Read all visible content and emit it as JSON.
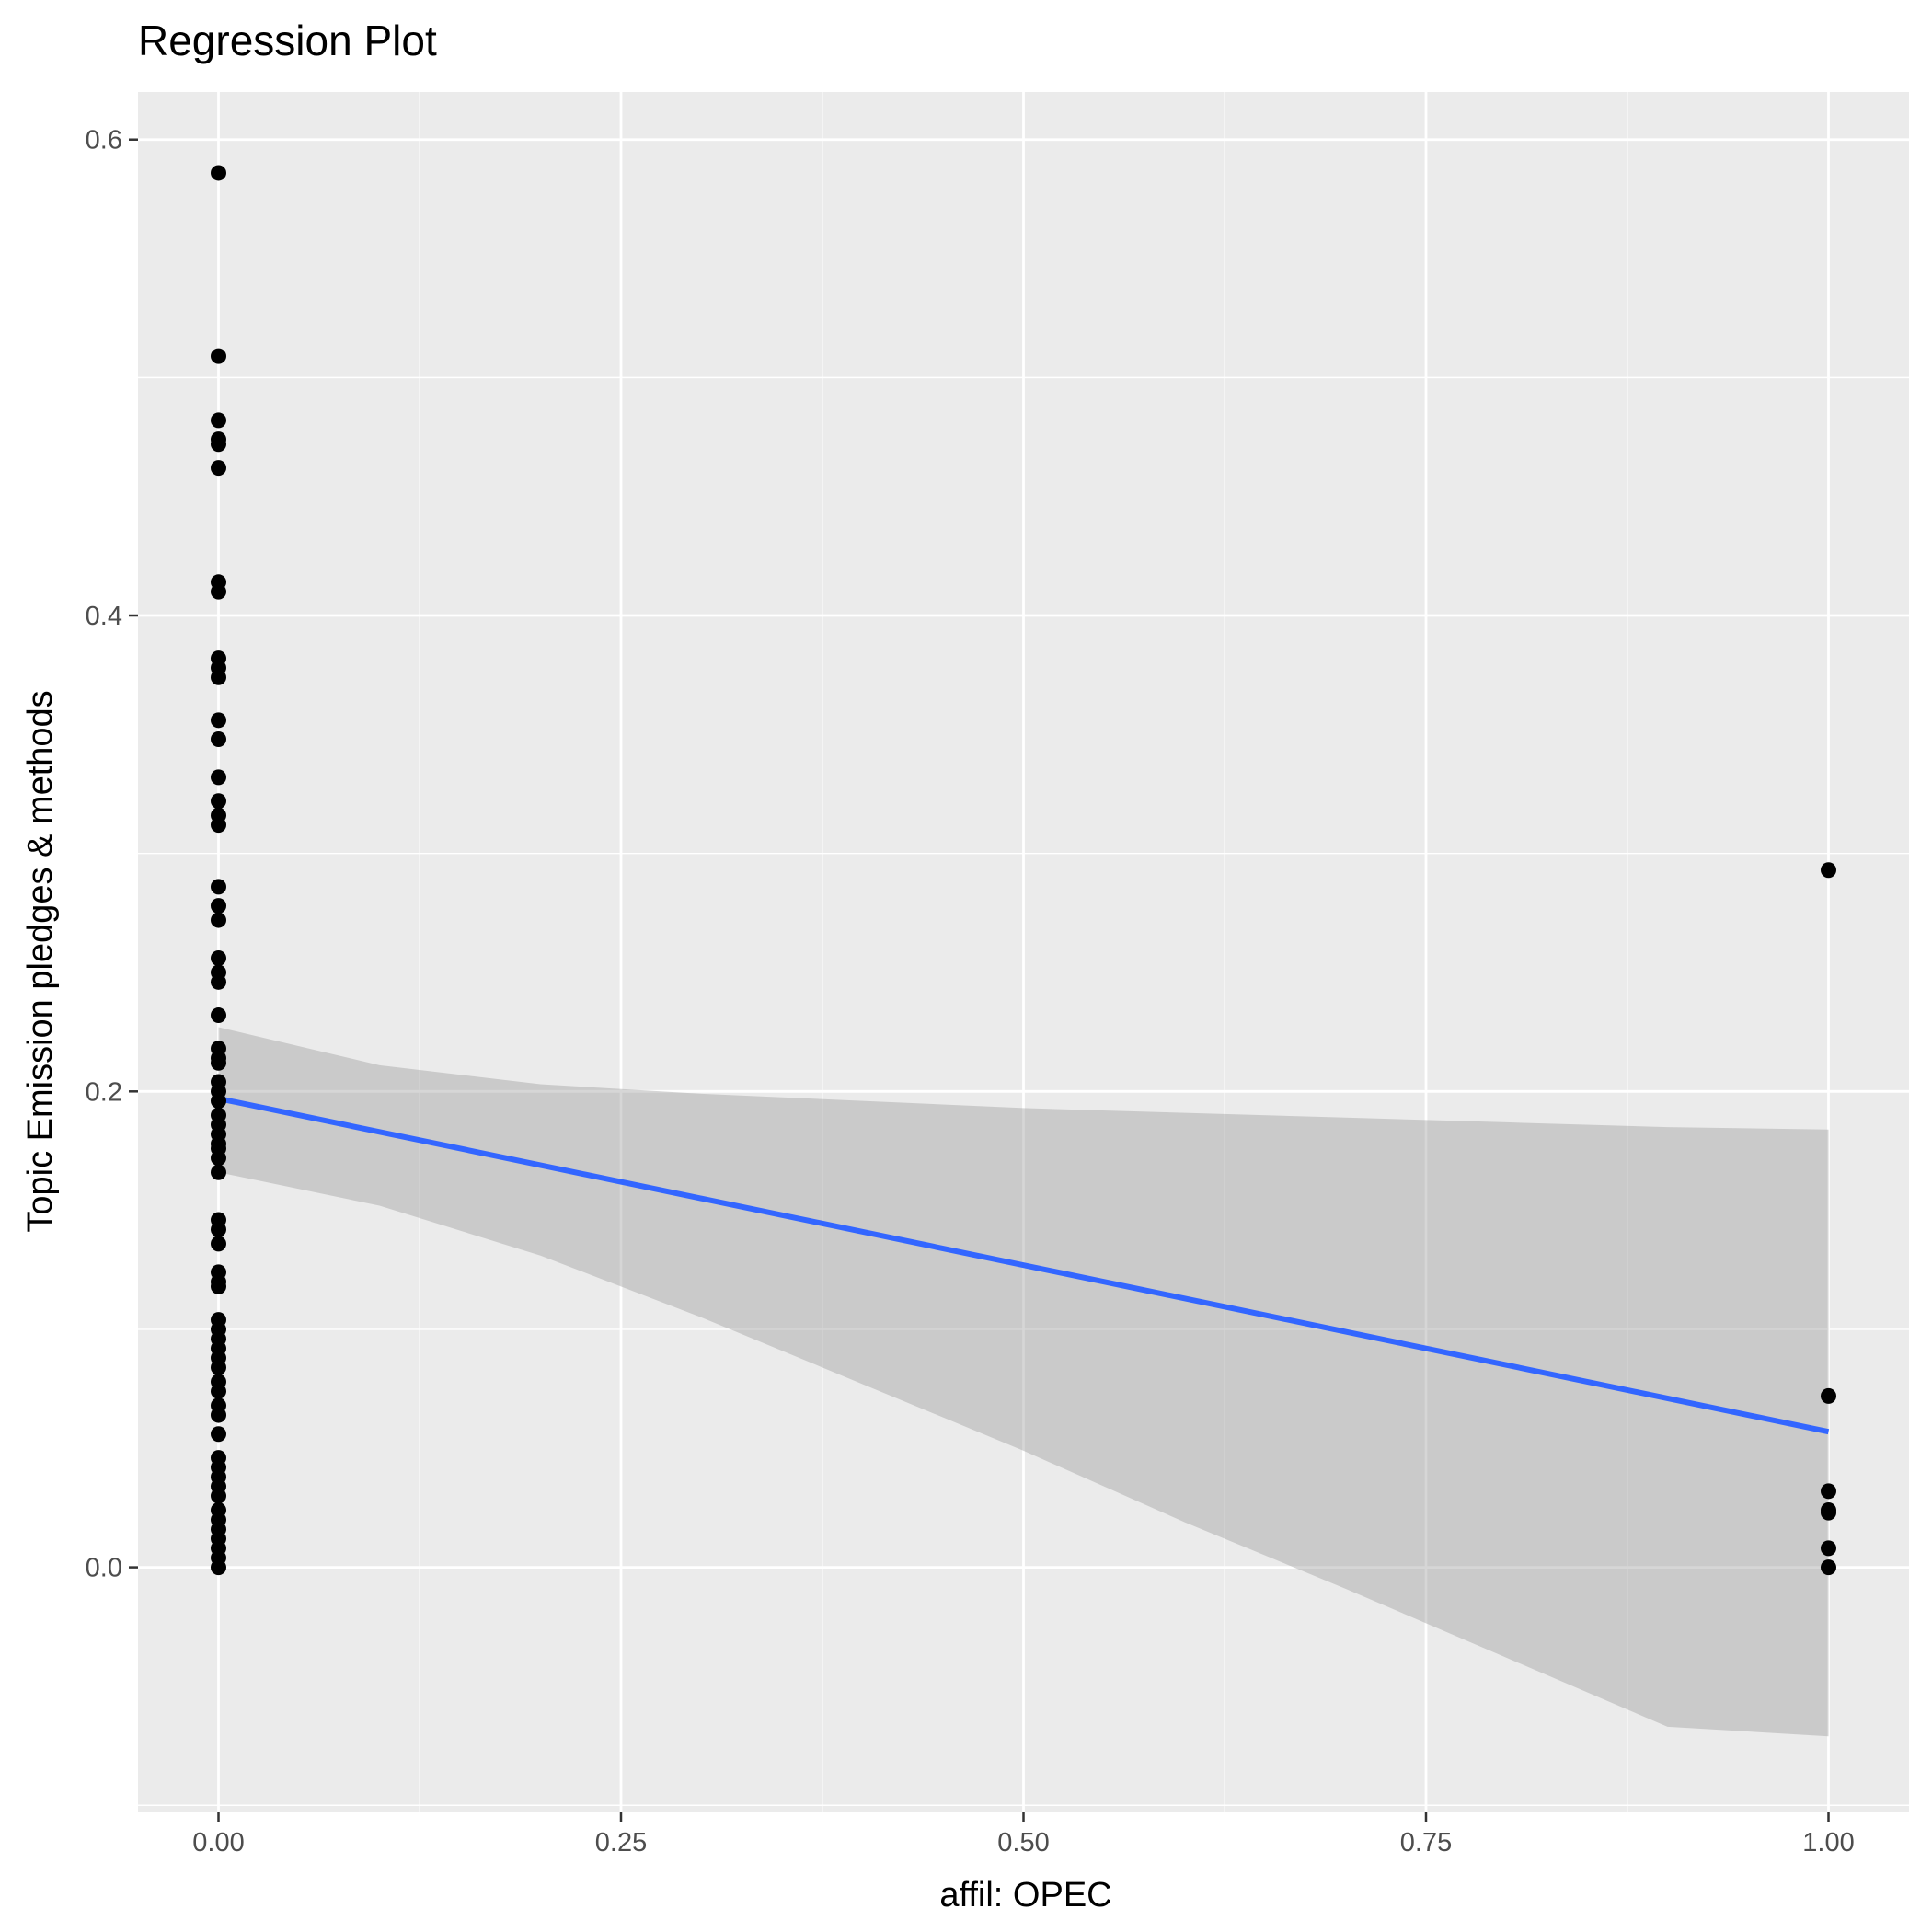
{
  "chart_data": {
    "type": "scatter",
    "title": "Regression Plot",
    "xlabel": "affil: OPEC",
    "ylabel": "Topic Emission pledges & methods",
    "xlim": [
      -0.05,
      1.05
    ],
    "ylim": [
      -0.103,
      0.62
    ],
    "x_ticks": [
      {
        "value": 0.0,
        "label": "0.00"
      },
      {
        "value": 0.25,
        "label": "0.25"
      },
      {
        "value": 0.5,
        "label": "0.50"
      },
      {
        "value": 0.75,
        "label": "0.75"
      },
      {
        "value": 1.0,
        "label": "1.00"
      }
    ],
    "y_ticks": [
      {
        "value": 0.0,
        "label": "0.0"
      },
      {
        "value": 0.2,
        "label": "0.2"
      },
      {
        "value": 0.4,
        "label": "0.4"
      },
      {
        "value": 0.6,
        "label": "0.6"
      }
    ],
    "x_minor": [
      0.125,
      0.375,
      0.625,
      0.875
    ],
    "y_minor": [
      -0.1,
      0.1,
      0.3,
      0.5
    ],
    "grid": true,
    "legend": "none",
    "colors": {
      "panel": "#EBEBEB",
      "grid": "#FFFFFF",
      "point": "#000000",
      "line": "#3366FF",
      "ribbon": "#999999"
    },
    "points": {
      "x0": [
        0.586,
        0.509,
        0.482,
        0.474,
        0.472,
        0.462,
        0.414,
        0.41,
        0.382,
        0.378,
        0.374,
        0.356,
        0.348,
        0.332,
        0.322,
        0.316,
        0.312,
        0.286,
        0.278,
        0.272,
        0.256,
        0.25,
        0.246,
        0.232,
        0.218,
        0.214,
        0.212,
        0.204,
        0.2,
        0.196,
        0.19,
        0.186,
        0.182,
        0.178,
        0.176,
        0.172,
        0.166,
        0.146,
        0.142,
        0.136,
        0.124,
        0.12,
        0.118,
        0.104,
        0.1,
        0.096,
        0.092,
        0.088,
        0.084,
        0.078,
        0.074,
        0.068,
        0.064,
        0.056,
        0.046,
        0.042,
        0.038,
        0.034,
        0.03,
        0.024,
        0.02,
        0.016,
        0.012,
        0.008,
        0.004,
        0.0
      ],
      "x1": [
        0.293,
        0.072,
        0.032,
        0.024,
        0.023,
        0.008,
        0.0
      ]
    },
    "fit": {
      "x": [
        0,
        1
      ],
      "y": [
        0.197,
        0.057
      ]
    },
    "ci": {
      "x": [
        0,
        0.1,
        0.2,
        0.3,
        0.4,
        0.5,
        0.6,
        0.7,
        0.8,
        0.9,
        1.0
      ],
      "upper": [
        0.227,
        0.211,
        0.203,
        0.199,
        0.196,
        0.193,
        0.191,
        0.189,
        0.187,
        0.185,
        0.184
      ],
      "lower": [
        0.166,
        0.152,
        0.131,
        0.105,
        0.077,
        0.049,
        0.019,
        -0.009,
        -0.038,
        -0.067,
        -0.071
      ]
    }
  }
}
